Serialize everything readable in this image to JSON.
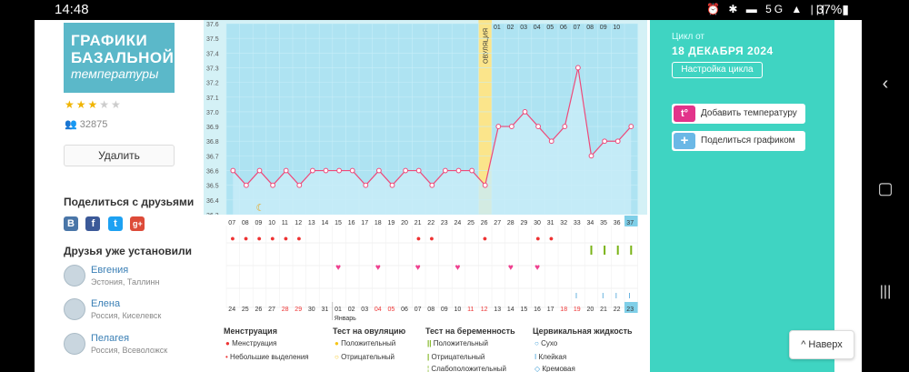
{
  "status_bar": {
    "time": "14:48",
    "icons": "⏰ ✱ ▬ 5G ▲ |||",
    "battery": "37%▮"
  },
  "logo": {
    "line1": "ГРАФИКИ",
    "line2": "БАЗАЛЬНОЙ",
    "line3": "температуры"
  },
  "rating": {
    "stars_on": "★★★",
    "stars_off": "★★"
  },
  "user_count": "32875",
  "delete_label": "Удалить",
  "share_title": "Поделиться с друзьями",
  "social": [
    "В",
    "f",
    "t",
    "g+"
  ],
  "friends_title": "Друзья уже установили",
  "friends": [
    {
      "name": "Евгения",
      "location": "Эстония, Таллинн"
    },
    {
      "name": "Елена",
      "location": "Россия, Киселевск"
    },
    {
      "name": "Пелагея",
      "location": "Россия, Всеволожск"
    }
  ],
  "cycle": {
    "label": "Цикл от",
    "date": "18 ДЕКАБРЯ 2024",
    "settings_label": "Настройка цикла"
  },
  "actions": {
    "add_temp": "Добавить температуру",
    "add_temp_icon": "t°",
    "share_chart": "Поделиться графиком",
    "share_icon": "+"
  },
  "up_button": "^ Наверх",
  "legend": {
    "menstruation": {
      "title": "Менструация",
      "items": [
        "Менструация",
        "Небольшие выделения"
      ]
    },
    "ovulation_test": {
      "title": "Тест на овуляцию",
      "items": [
        "Положительный",
        "Отрицательный"
      ]
    },
    "pregnancy_test": {
      "title": "Тест на беременность",
      "items": [
        "Положительный",
        "Отрицательный",
        "Слабоположительный"
      ]
    },
    "cervical_fluid": {
      "title": "Цервикальная жидкость",
      "items": [
        "Сухо",
        "Клейкая",
        "Кремовая"
      ]
    }
  },
  "chart_data": {
    "type": "line",
    "ylim": [
      36.3,
      37.6
    ],
    "y_ticks": [
      "37.6",
      "37.5",
      "37.4",
      "37.3",
      "37.2",
      "37.1",
      "37.0",
      "36.9",
      "36.8",
      "36.7",
      "36.6",
      "36.5",
      "36.4",
      "36.3"
    ],
    "cycle_days": [
      "07",
      "08",
      "09",
      "10",
      "11",
      "12",
      "13",
      "14",
      "15",
      "16",
      "17",
      "18",
      "19",
      "20",
      "21",
      "22",
      "23",
      "24",
      "25",
      "26",
      "27",
      "28",
      "29",
      "30",
      "31",
      "32",
      "33",
      "34",
      "35",
      "36",
      "37"
    ],
    "top_days": [
      "01",
      "02",
      "03",
      "04",
      "05",
      "06",
      "07",
      "08",
      "09",
      "10"
    ],
    "dates": [
      "24",
      "25",
      "26",
      "27",
      "28",
      "29",
      "30",
      "31",
      "01",
      "02",
      "03",
      "04",
      "05",
      "06",
      "07",
      "08",
      "09",
      "10",
      "11",
      "12",
      "13",
      "14",
      "15",
      "16",
      "17",
      "18",
      "19",
      "20",
      "21",
      "22",
      "23"
    ],
    "red_dates": [
      "28",
      "29",
      "04",
      "05",
      "11",
      "12",
      "18",
      "19"
    ],
    "month_label": "Январь",
    "ovulation_label": "ОВУЛЯЦИЯ",
    "values": [
      36.6,
      36.5,
      36.6,
      36.5,
      36.6,
      36.5,
      36.6,
      36.6,
      36.6,
      36.6,
      36.5,
      36.6,
      36.5,
      36.6,
      36.6,
      36.5,
      36.6,
      36.6,
      36.6,
      36.5,
      36.9,
      36.9,
      37.0,
      36.9,
      36.8,
      36.9,
      37.3,
      36.7,
      36.8,
      36.8,
      36.9
    ],
    "menstruation_days": [
      "07",
      "08",
      "09",
      "10",
      "11",
      "12",
      "21",
      "22",
      "26",
      "30",
      "31"
    ],
    "hearts_days": [
      "15",
      "18",
      "21",
      "24",
      "28",
      "30"
    ],
    "pregnancy_test_days": [
      "34",
      "35",
      "36",
      "37"
    ],
    "fluid_days": [
      "33",
      "35",
      "36",
      "37"
    ],
    "highlight_day": "37",
    "highlight_date": "23"
  }
}
